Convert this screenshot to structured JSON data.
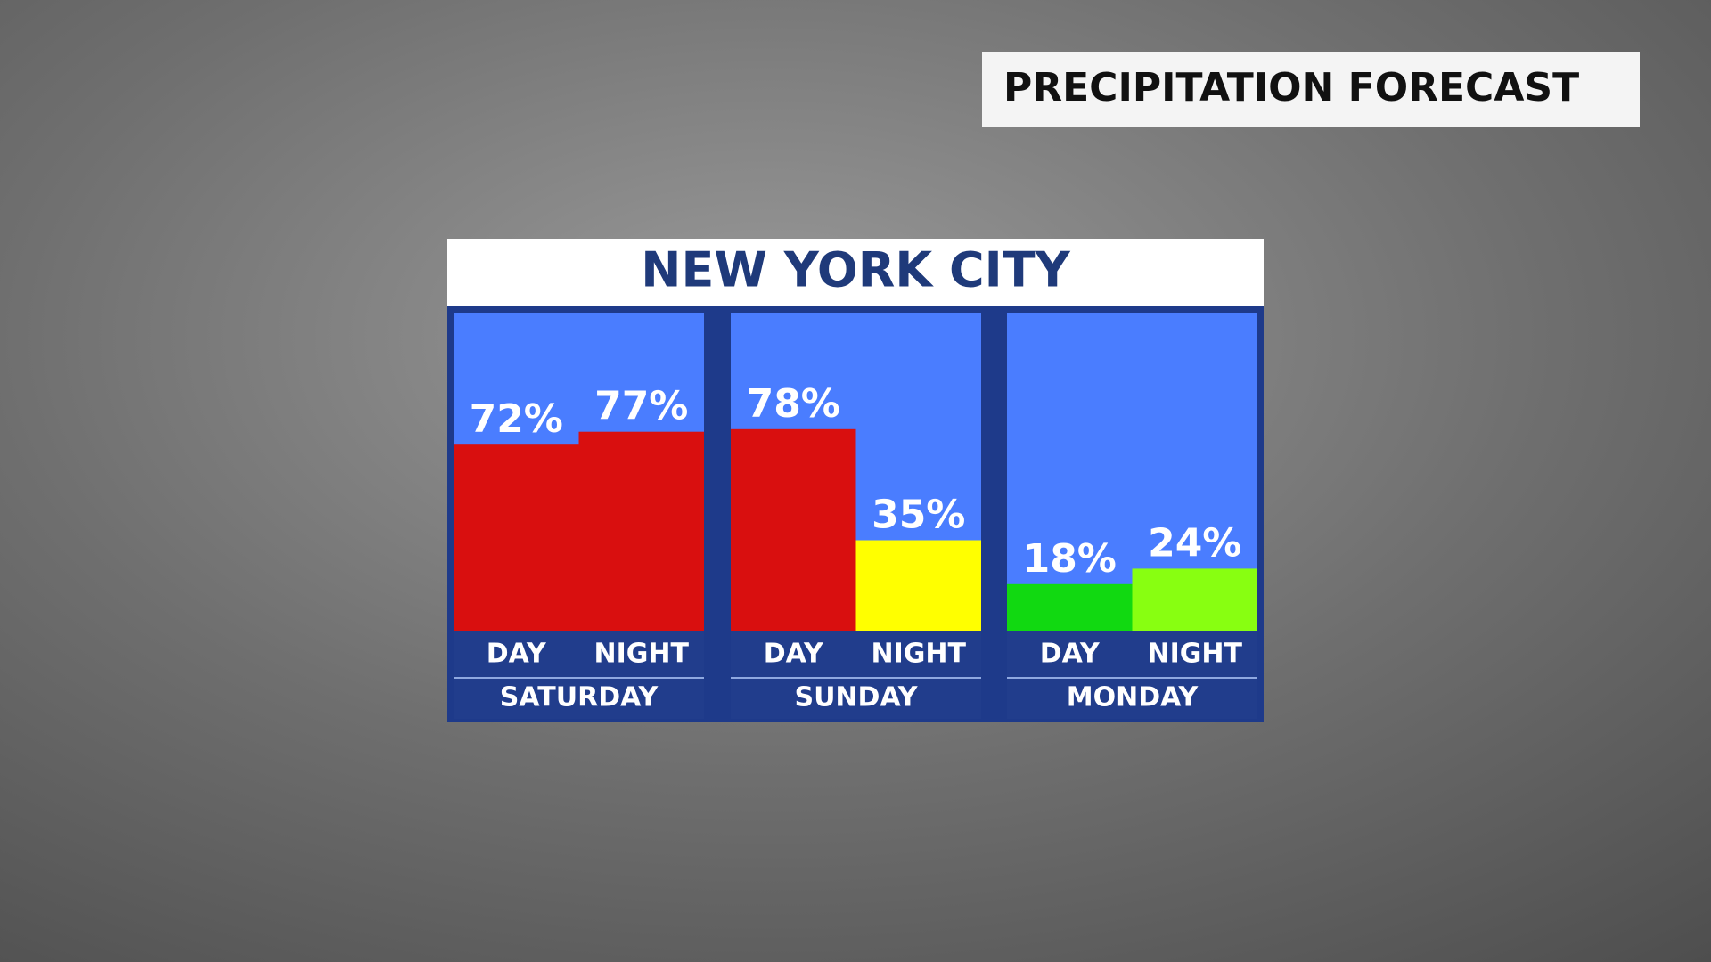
{
  "header": "PRECIPITATION FORECAST",
  "chart_data": {
    "type": "bar",
    "title": "NEW YORK CITY",
    "categories": [
      "SATURDAY",
      "SUNDAY",
      "MONDAY"
    ],
    "series": [
      {
        "name": "DAY",
        "values": [
          72,
          78,
          18
        ],
        "value_labels": [
          "72%",
          "78%",
          "18%"
        ],
        "colors": [
          "#d90f0f",
          "#d90f0f",
          "#11d911"
        ]
      },
      {
        "name": "NIGHT",
        "values": [
          77,
          35,
          24
        ],
        "value_labels": [
          "77%",
          "35%",
          "24%"
        ],
        "colors": [
          "#d90f0f",
          "#ffff00",
          "#88ff11"
        ]
      }
    ]
  }
}
